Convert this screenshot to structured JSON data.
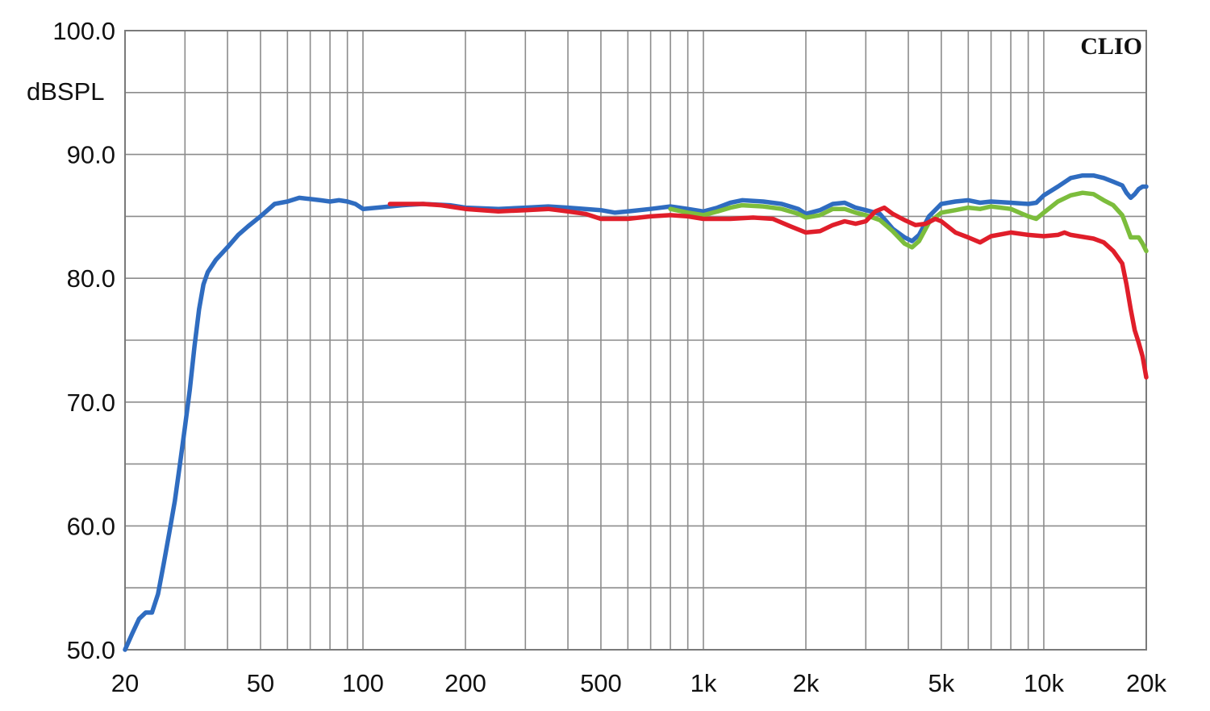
{
  "chart_data": {
    "type": "line",
    "brand": "CLIO",
    "ylabel": "dBSPL",
    "xscale": "log",
    "xlim": [
      20,
      20000
    ],
    "ylim": [
      50,
      100
    ],
    "grid": true,
    "x_ticks": [
      20,
      50,
      100,
      200,
      500,
      1000,
      2000,
      5000,
      10000,
      20000
    ],
    "x_tick_labels": [
      "20",
      "50",
      "100",
      "200",
      "500",
      "1k",
      "2k",
      "5k",
      "10k",
      "20k"
    ],
    "y_ticks": [
      50,
      60,
      70,
      80,
      90,
      100
    ],
    "y_tick_labels": [
      "50.0",
      "60.0",
      "70.0",
      "80.0",
      "90.0",
      "100.0"
    ],
    "series": [
      {
        "color": "#2f6cc0",
        "points": [
          [
            20,
            50.0
          ],
          [
            21,
            51.3
          ],
          [
            22,
            52.5
          ],
          [
            23,
            53.0
          ],
          [
            24,
            53.0
          ],
          [
            25,
            54.5
          ],
          [
            26,
            57.0
          ],
          [
            27,
            59.5
          ],
          [
            28,
            62.0
          ],
          [
            29,
            65.0
          ],
          [
            30,
            68.0
          ],
          [
            31,
            71.0
          ],
          [
            32,
            74.5
          ],
          [
            33,
            77.5
          ],
          [
            34,
            79.5
          ],
          [
            35,
            80.5
          ],
          [
            37,
            81.5
          ],
          [
            40,
            82.5
          ],
          [
            43,
            83.5
          ],
          [
            46,
            84.2
          ],
          [
            50,
            85.0
          ],
          [
            55,
            86.0
          ],
          [
            60,
            86.2
          ],
          [
            65,
            86.5
          ],
          [
            70,
            86.4
          ],
          [
            75,
            86.3
          ],
          [
            80,
            86.2
          ],
          [
            85,
            86.3
          ],
          [
            90,
            86.2
          ],
          [
            95,
            86.0
          ],
          [
            100,
            85.6
          ],
          [
            110,
            85.7
          ],
          [
            120,
            85.8
          ],
          [
            130,
            85.9
          ],
          [
            150,
            86.0
          ],
          [
            180,
            85.9
          ],
          [
            200,
            85.7
          ],
          [
            250,
            85.6
          ],
          [
            300,
            85.7
          ],
          [
            350,
            85.8
          ],
          [
            400,
            85.7
          ],
          [
            500,
            85.5
          ],
          [
            550,
            85.3
          ],
          [
            600,
            85.4
          ],
          [
            700,
            85.6
          ],
          [
            800,
            85.8
          ],
          [
            900,
            85.6
          ],
          [
            1000,
            85.4
          ],
          [
            1100,
            85.7
          ],
          [
            1200,
            86.1
          ],
          [
            1300,
            86.3
          ],
          [
            1500,
            86.2
          ],
          [
            1700,
            86.0
          ],
          [
            1900,
            85.6
          ],
          [
            2000,
            85.2
          ],
          [
            2200,
            85.5
          ],
          [
            2400,
            86.0
          ],
          [
            2600,
            86.1
          ],
          [
            2800,
            85.7
          ],
          [
            3000,
            85.5
          ],
          [
            3300,
            85.2
          ],
          [
            3600,
            84.0
          ],
          [
            3900,
            83.3
          ],
          [
            4100,
            83.0
          ],
          [
            4300,
            83.5
          ],
          [
            4600,
            85.0
          ],
          [
            5000,
            86.0
          ],
          [
            5500,
            86.2
          ],
          [
            6000,
            86.3
          ],
          [
            6500,
            86.1
          ],
          [
            7000,
            86.2
          ],
          [
            8000,
            86.1
          ],
          [
            9000,
            86.0
          ],
          [
            9500,
            86.1
          ],
          [
            10000,
            86.7
          ],
          [
            11000,
            87.4
          ],
          [
            12000,
            88.1
          ],
          [
            13000,
            88.3
          ],
          [
            14000,
            88.3
          ],
          [
            15000,
            88.1
          ],
          [
            16000,
            87.8
          ],
          [
            17000,
            87.5
          ],
          [
            17500,
            86.9
          ],
          [
            18000,
            86.5
          ],
          [
            18500,
            86.8
          ],
          [
            19000,
            87.2
          ],
          [
            19500,
            87.4
          ],
          [
            20000,
            87.4
          ]
        ]
      },
      {
        "color": "#7cbd3c",
        "points": [
          [
            800,
            85.6
          ],
          [
            900,
            85.3
          ],
          [
            1000,
            85.1
          ],
          [
            1100,
            85.4
          ],
          [
            1200,
            85.7
          ],
          [
            1300,
            85.9
          ],
          [
            1500,
            85.8
          ],
          [
            1700,
            85.6
          ],
          [
            1900,
            85.2
          ],
          [
            2000,
            84.9
          ],
          [
            2200,
            85.1
          ],
          [
            2400,
            85.6
          ],
          [
            2600,
            85.6
          ],
          [
            2800,
            85.3
          ],
          [
            3000,
            85.1
          ],
          [
            3300,
            84.7
          ],
          [
            3600,
            83.8
          ],
          [
            3900,
            82.8
          ],
          [
            4100,
            82.5
          ],
          [
            4300,
            83.0
          ],
          [
            4600,
            84.5
          ],
          [
            5000,
            85.3
          ],
          [
            5500,
            85.5
          ],
          [
            6000,
            85.7
          ],
          [
            6500,
            85.6
          ],
          [
            7000,
            85.8
          ],
          [
            8000,
            85.6
          ],
          [
            9000,
            85.0
          ],
          [
            9500,
            84.8
          ],
          [
            10000,
            85.3
          ],
          [
            11000,
            86.2
          ],
          [
            12000,
            86.7
          ],
          [
            13000,
            86.9
          ],
          [
            14000,
            86.8
          ],
          [
            15000,
            86.3
          ],
          [
            16000,
            85.9
          ],
          [
            17000,
            85.1
          ],
          [
            17500,
            84.2
          ],
          [
            18000,
            83.3
          ],
          [
            19000,
            83.3
          ],
          [
            19500,
            82.8
          ],
          [
            20000,
            82.2
          ]
        ]
      },
      {
        "color": "#e01e2a",
        "points": [
          [
            120,
            86.0
          ],
          [
            150,
            86.0
          ],
          [
            170,
            85.9
          ],
          [
            200,
            85.6
          ],
          [
            250,
            85.4
          ],
          [
            300,
            85.5
          ],
          [
            350,
            85.6
          ],
          [
            400,
            85.4
          ],
          [
            450,
            85.2
          ],
          [
            500,
            84.8
          ],
          [
            550,
            84.8
          ],
          [
            600,
            84.8
          ],
          [
            700,
            85.0
          ],
          [
            800,
            85.1
          ],
          [
            900,
            85.0
          ],
          [
            1000,
            84.8
          ],
          [
            1100,
            84.8
          ],
          [
            1200,
            84.8
          ],
          [
            1400,
            84.9
          ],
          [
            1600,
            84.8
          ],
          [
            1800,
            84.2
          ],
          [
            2000,
            83.7
          ],
          [
            2200,
            83.8
          ],
          [
            2400,
            84.3
          ],
          [
            2600,
            84.6
          ],
          [
            2800,
            84.4
          ],
          [
            3000,
            84.6
          ],
          [
            3200,
            85.4
          ],
          [
            3400,
            85.7
          ],
          [
            3600,
            85.2
          ],
          [
            3900,
            84.7
          ],
          [
            4200,
            84.3
          ],
          [
            4500,
            84.4
          ],
          [
            4800,
            84.8
          ],
          [
            5000,
            84.6
          ],
          [
            5500,
            83.7
          ],
          [
            6000,
            83.3
          ],
          [
            6500,
            82.9
          ],
          [
            7000,
            83.4
          ],
          [
            8000,
            83.7
          ],
          [
            9000,
            83.5
          ],
          [
            10000,
            83.4
          ],
          [
            11000,
            83.5
          ],
          [
            11500,
            83.7
          ],
          [
            12000,
            83.5
          ],
          [
            14000,
            83.2
          ],
          [
            15000,
            82.9
          ],
          [
            16000,
            82.2
          ],
          [
            17000,
            81.2
          ],
          [
            17500,
            79.5
          ],
          [
            18000,
            77.5
          ],
          [
            18500,
            75.8
          ],
          [
            19000,
            74.8
          ],
          [
            19500,
            73.7
          ],
          [
            20000,
            72.0
          ]
        ]
      }
    ]
  }
}
